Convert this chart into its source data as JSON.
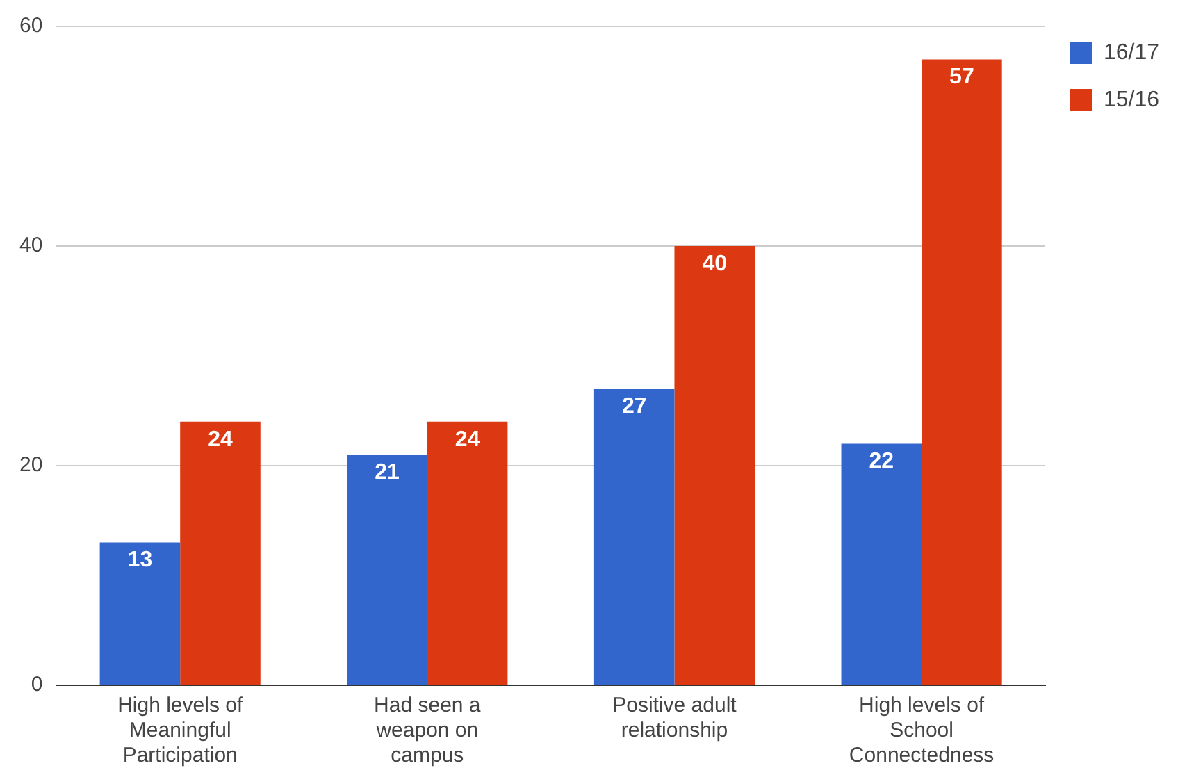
{
  "chart_data": {
    "type": "bar",
    "categories": [
      "High levels of Meaningful Participation",
      "Had seen a weapon on campus",
      "Positive adult relationship",
      "High levels of School Connectedness"
    ],
    "series": [
      {
        "name": "16/17",
        "color": "#3366cc",
        "values": [
          13,
          21,
          27,
          22
        ]
      },
      {
        "name": "15/16",
        "color": "#dc3912",
        "values": [
          24,
          24,
          40,
          57
        ]
      }
    ],
    "ylim": [
      0,
      60
    ],
    "yticks": [
      0,
      20,
      40,
      60
    ],
    "grid": "y",
    "legend": "top right",
    "data_labels": true
  }
}
